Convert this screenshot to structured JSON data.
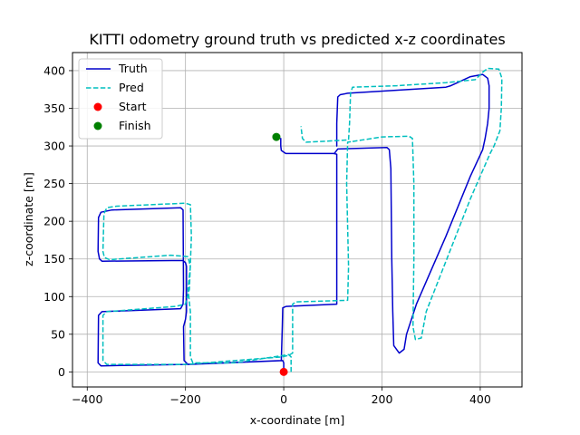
{
  "chart_data": {
    "type": "line",
    "title": "KITTI odometry ground truth vs predicted x-z coordinates",
    "xlabel": "x-coordinate [m]",
    "ylabel": "z-coordinate [m]",
    "xlim": [
      -430,
      485
    ],
    "ylim": [
      -20,
      424
    ],
    "xticks": [
      -400,
      -200,
      0,
      200,
      400
    ],
    "yticks": [
      0,
      50,
      100,
      150,
      200,
      250,
      300,
      350,
      400
    ],
    "xtick_labels": [
      "−400",
      "−200",
      "0",
      "200",
      "400"
    ],
    "ytick_labels": [
      "0",
      "50",
      "100",
      "150",
      "200",
      "250",
      "300",
      "350",
      "400"
    ],
    "grid": true,
    "legend_position": "top-left",
    "legend": [
      {
        "label": "Truth",
        "color": "#0000cc",
        "style": "solid-line"
      },
      {
        "label": "Pred",
        "color": "#00bfbf",
        "style": "dashed-line"
      },
      {
        "label": "Start",
        "color": "#ff0000",
        "style": "marker"
      },
      {
        "label": "Finish",
        "color": "#008000",
        "style": "marker"
      }
    ],
    "series": [
      {
        "name": "Truth",
        "color": "#0000cc",
        "dash": "solid",
        "points": [
          [
            0,
            0
          ],
          [
            0,
            12
          ],
          [
            -2,
            15
          ],
          [
            -195,
            10
          ],
          [
            -203,
            15
          ],
          [
            -204,
            60
          ],
          [
            -200,
            70
          ],
          [
            -198,
            80
          ],
          [
            -198,
            140
          ],
          [
            -200,
            145
          ],
          [
            -205,
            148
          ],
          [
            -370,
            147
          ],
          [
            -375,
            150
          ],
          [
            -378,
            160
          ],
          [
            -377,
            205
          ],
          [
            -372,
            212
          ],
          [
            -350,
            215
          ],
          [
            -210,
            218
          ],
          [
            -205,
            215
          ],
          [
            -204,
            110
          ],
          [
            -205,
            90
          ],
          [
            -210,
            84
          ],
          [
            -370,
            80
          ],
          [
            -377,
            75
          ],
          [
            -378,
            12
          ],
          [
            -372,
            8
          ],
          [
            -200,
            10
          ],
          [
            -5,
            15
          ],
          [
            -3,
            60
          ],
          [
            -2,
            85
          ],
          [
            5,
            87
          ],
          [
            108,
            90
          ],
          [
            108,
            140
          ],
          [
            108,
            260
          ],
          [
            108,
            289
          ],
          [
            102,
            290
          ],
          [
            4,
            290
          ],
          [
            -5,
            294
          ],
          [
            -6,
            300
          ],
          [
            -6,
            310
          ]
        ]
      },
      {
        "name": "Truth",
        "color": "#0000cc",
        "dash": "solid",
        "points": [
          [
            103,
            290
          ],
          [
            110,
            296
          ],
          [
            210,
            298
          ],
          [
            215,
            295
          ],
          [
            218,
            270
          ],
          [
            220,
            150
          ],
          [
            222,
            80
          ],
          [
            224,
            35
          ],
          [
            235,
            25
          ],
          [
            245,
            30
          ],
          [
            250,
            50
          ],
          [
            270,
            90
          ],
          [
            330,
            180
          ],
          [
            380,
            260
          ],
          [
            405,
            295
          ],
          [
            410,
            310
          ],
          [
            415,
            330
          ],
          [
            418,
            350
          ],
          [
            418,
            380
          ],
          [
            415,
            390
          ],
          [
            405,
            395
          ],
          [
            380,
            392
          ],
          [
            340,
            380
          ],
          [
            330,
            378
          ],
          [
            130,
            370
          ],
          [
            115,
            368
          ],
          [
            110,
            365
          ],
          [
            108,
            330
          ],
          [
            108,
            300
          ]
        ]
      },
      {
        "name": "Pred",
        "color": "#00bfbf",
        "dash": "dashed",
        "points": [
          [
            15,
            0
          ],
          [
            15,
            20
          ],
          [
            10,
            23
          ],
          [
            -100,
            12
          ],
          [
            -185,
            12
          ],
          [
            -190,
            20
          ],
          [
            -190,
            80
          ],
          [
            -195,
            110
          ],
          [
            -190,
            140
          ],
          [
            -195,
            153
          ],
          [
            -230,
            155
          ],
          [
            -355,
            149
          ],
          [
            -365,
            152
          ],
          [
            -368,
            160
          ],
          [
            -366,
            210
          ],
          [
            -360,
            218
          ],
          [
            -340,
            220
          ],
          [
            -200,
            224
          ],
          [
            -190,
            222
          ],
          [
            -188,
            180
          ],
          [
            -192,
            110
          ],
          [
            -200,
            90
          ],
          [
            -220,
            87
          ],
          [
            -360,
            80
          ],
          [
            -368,
            75
          ],
          [
            -368,
            15
          ],
          [
            -360,
            10
          ],
          [
            -200,
            10
          ],
          [
            -3,
            20
          ],
          [
            10,
            22
          ],
          [
            18,
            25
          ],
          [
            18,
            90
          ],
          [
            25,
            93
          ],
          [
            130,
            95
          ],
          [
            132,
            140
          ],
          [
            128,
            250
          ],
          [
            130,
            305
          ],
          [
            140,
            306
          ]
        ]
      },
      {
        "name": "Pred",
        "color": "#00bfbf",
        "dash": "dashed",
        "points": [
          [
            140,
            306
          ],
          [
            200,
            312
          ],
          [
            255,
            313
          ],
          [
            262,
            310
          ],
          [
            265,
            250
          ],
          [
            265,
            150
          ],
          [
            263,
            60
          ],
          [
            268,
            43
          ],
          [
            280,
            45
          ],
          [
            290,
            80
          ],
          [
            380,
            230
          ],
          [
            420,
            290
          ],
          [
            428,
            300
          ],
          [
            440,
            320
          ],
          [
            443,
            350
          ],
          [
            444,
            390
          ],
          [
            438,
            402
          ],
          [
            415,
            403
          ],
          [
            405,
            398
          ],
          [
            390,
            388
          ],
          [
            330,
            384
          ],
          [
            230,
            380
          ],
          [
            140,
            378
          ],
          [
            136,
            370
          ],
          [
            134,
            330
          ],
          [
            132,
            308
          ],
          [
            75,
            306
          ],
          [
            45,
            305
          ],
          [
            38,
            310
          ],
          [
            35,
            326
          ]
        ]
      }
    ],
    "markers": [
      {
        "name": "Start",
        "x": 0,
        "y": 0,
        "color": "#ff0000"
      },
      {
        "name": "Finish",
        "x": -15,
        "y": 312,
        "color": "#008000"
      }
    ]
  }
}
